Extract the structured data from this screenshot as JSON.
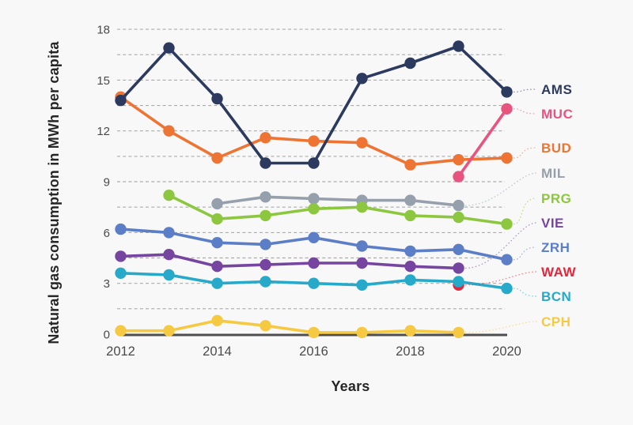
{
  "figure": {
    "y_axis_title": "Natural gas consumption in MWh per capita",
    "x_axis_title": "Years",
    "background_color": "#f8f8f8",
    "gridline_color": "#ababab",
    "axis_line_color": "#4e4e4e",
    "tick_text_color": "#4a4a4a"
  },
  "chart_data": {
    "type": "line",
    "x": [
      2012,
      2013,
      2014,
      2015,
      2016,
      2017,
      2018,
      2019,
      2020
    ],
    "xticks": [
      2012,
      2014,
      2016,
      2018,
      2020
    ],
    "yticks": [
      0,
      3,
      6,
      9,
      12,
      15,
      18
    ],
    "ylim": [
      0,
      18
    ],
    "gridline_step": 1.5,
    "grid": "horizontal dashed",
    "xlabel": "Years",
    "ylabel": "Natural gas consumption in MWh per capita",
    "legend_position": "right-edge labels with dotted leader lines",
    "series": [
      {
        "name": "AMS",
        "color": "#2b3a5e",
        "values": [
          13.8,
          16.9,
          13.9,
          10.1,
          10.1,
          15.1,
          16.0,
          17.0,
          14.3
        ]
      },
      {
        "name": "MUC",
        "color": "#e85480",
        "values": [
          null,
          null,
          null,
          null,
          null,
          null,
          null,
          9.3,
          13.3
        ]
      },
      {
        "name": "BUD",
        "color": "#ee7434",
        "values": [
          14.0,
          12.0,
          10.4,
          11.6,
          11.4,
          11.3,
          10.0,
          10.3,
          10.4
        ]
      },
      {
        "name": "MIL",
        "color": "#95a0ac",
        "values": [
          null,
          null,
          7.7,
          8.1,
          8.0,
          7.9,
          7.9,
          7.6,
          null
        ]
      },
      {
        "name": "PRG",
        "color": "#8dc63f",
        "values": [
          null,
          8.2,
          6.8,
          7.0,
          7.4,
          7.5,
          7.0,
          6.9,
          6.5
        ]
      },
      {
        "name": "VIE",
        "color": "#7645a0",
        "values": [
          4.6,
          4.7,
          4.0,
          4.1,
          4.2,
          4.2,
          4.0,
          3.9,
          null
        ]
      },
      {
        "name": "ZRH",
        "color": "#5b7ec7",
        "values": [
          6.2,
          6.0,
          5.4,
          5.3,
          5.7,
          5.2,
          4.9,
          5.0,
          4.4
        ]
      },
      {
        "name": "WAW",
        "color": "#e0283c",
        "values": [
          null,
          null,
          null,
          null,
          null,
          null,
          null,
          2.9,
          null
        ]
      },
      {
        "name": "BCN",
        "color": "#27a9c9",
        "values": [
          3.6,
          3.5,
          3.0,
          3.1,
          3.0,
          2.9,
          3.2,
          3.1,
          2.7
        ]
      },
      {
        "name": "CPH",
        "color": "#f6c943",
        "values": [
          0.2,
          0.2,
          0.8,
          0.5,
          0.1,
          0.1,
          0.2,
          0.1,
          null
        ]
      }
    ]
  }
}
